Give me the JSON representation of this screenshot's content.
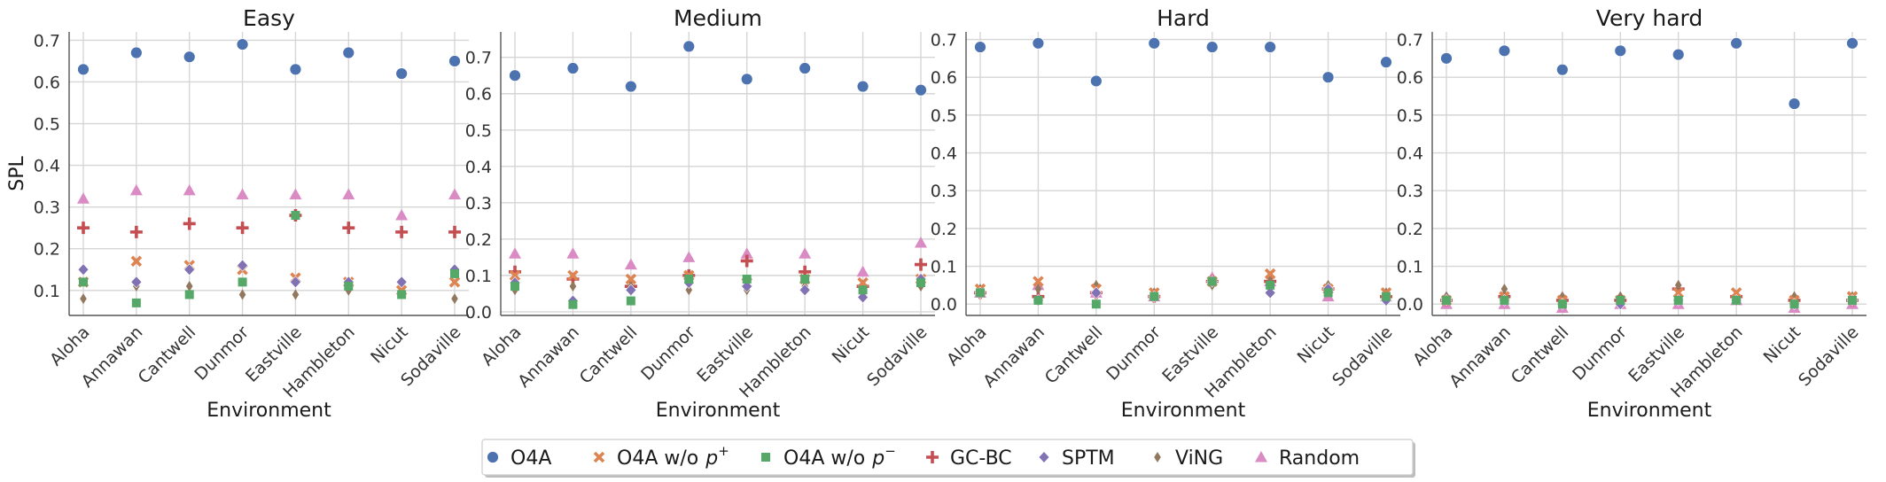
{
  "figure": {
    "ylabel": "SPL",
    "xlabel": "Environment"
  },
  "chart_data": [
    {
      "type": "scatter",
      "title": "Easy",
      "xlabel": "Environment",
      "ylabel": "SPL",
      "categories": [
        "Aloha",
        "Annawan",
        "Cantwell",
        "Dunmor",
        "Eastville",
        "Hambleton",
        "Nicut",
        "Sodaville"
      ],
      "ylim": [
        0.04,
        0.72
      ],
      "yticks": [
        0.1,
        0.2,
        0.3,
        0.4,
        0.5,
        0.6,
        0.7
      ],
      "grid": true,
      "series": [
        {
          "name": "O4A",
          "values": [
            0.63,
            0.67,
            0.66,
            0.69,
            0.63,
            0.67,
            0.62,
            0.65
          ]
        },
        {
          "name": "O4A w/o p+",
          "values": [
            0.12,
            0.17,
            0.16,
            0.15,
            0.13,
            0.12,
            0.1,
            0.12
          ]
        },
        {
          "name": "O4A w/o p−",
          "values": [
            0.12,
            0.07,
            0.09,
            0.12,
            0.28,
            0.11,
            0.09,
            0.14
          ]
        },
        {
          "name": "GC-BC",
          "values": [
            0.25,
            0.24,
            0.26,
            0.25,
            0.28,
            0.25,
            0.24,
            0.24
          ]
        },
        {
          "name": "SPTM",
          "values": [
            0.15,
            0.12,
            0.15,
            0.16,
            0.12,
            0.12,
            0.12,
            0.15
          ]
        },
        {
          "name": "ViNG",
          "values": [
            0.08,
            0.11,
            0.11,
            0.09,
            0.09,
            0.1,
            0.1,
            0.08
          ]
        },
        {
          "name": "Random",
          "values": [
            0.32,
            0.34,
            0.34,
            0.33,
            0.33,
            0.33,
            0.28,
            0.33
          ]
        }
      ]
    },
    {
      "type": "scatter",
      "title": "Medium",
      "xlabel": "Environment",
      "ylabel": "",
      "categories": [
        "Aloha",
        "Annawan",
        "Cantwell",
        "Dunmor",
        "Eastville",
        "Hambleton",
        "Nicut",
        "Sodaville"
      ],
      "ylim": [
        -0.01,
        0.77
      ],
      "yticks": [
        0.0,
        0.1,
        0.2,
        0.3,
        0.4,
        0.5,
        0.6,
        0.7
      ],
      "grid": true,
      "series": [
        {
          "name": "O4A",
          "values": [
            0.65,
            0.67,
            0.62,
            0.73,
            0.64,
            0.67,
            0.62,
            0.61
          ]
        },
        {
          "name": "O4A w/o p+",
          "values": [
            0.1,
            0.1,
            0.09,
            0.1,
            0.08,
            0.09,
            0.08,
            0.09
          ]
        },
        {
          "name": "O4A w/o p−",
          "values": [
            0.07,
            0.02,
            0.03,
            0.09,
            0.09,
            0.09,
            0.06,
            0.08
          ]
        },
        {
          "name": "GC-BC",
          "values": [
            0.11,
            0.09,
            0.07,
            0.1,
            0.14,
            0.11,
            0.07,
            0.13
          ]
        },
        {
          "name": "SPTM",
          "values": [
            0.08,
            0.03,
            0.06,
            0.08,
            0.07,
            0.06,
            0.04,
            0.09
          ]
        },
        {
          "name": "ViNG",
          "values": [
            0.06,
            0.07,
            0.07,
            0.06,
            0.06,
            0.07,
            0.07,
            0.07
          ]
        },
        {
          "name": "Random",
          "values": [
            0.16,
            0.16,
            0.13,
            0.15,
            0.16,
            0.16,
            0.11,
            0.19
          ]
        }
      ]
    },
    {
      "type": "scatter",
      "title": "Hard",
      "xlabel": "Environment",
      "ylabel": "",
      "categories": [
        "Aloha",
        "Annawan",
        "Cantwell",
        "Dunmor",
        "Eastville",
        "Hambleton",
        "Nicut",
        "Sodaville"
      ],
      "ylim": [
        -0.03,
        0.72
      ],
      "yticks": [
        0.0,
        0.1,
        0.2,
        0.3,
        0.4,
        0.5,
        0.6,
        0.7
      ],
      "grid": true,
      "series": [
        {
          "name": "O4A",
          "values": [
            0.68,
            0.69,
            0.59,
            0.69,
            0.68,
            0.68,
            0.6,
            0.64
          ]
        },
        {
          "name": "O4A w/o p+",
          "values": [
            0.04,
            0.06,
            0.04,
            0.03,
            0.06,
            0.08,
            0.04,
            0.03
          ]
        },
        {
          "name": "O4A w/o p−",
          "values": [
            0.03,
            0.01,
            0.0,
            0.02,
            0.06,
            0.05,
            0.03,
            0.02
          ]
        },
        {
          "name": "GC-BC",
          "values": [
            0.03,
            0.02,
            0.03,
            0.02,
            0.06,
            0.06,
            0.04,
            0.02
          ]
        },
        {
          "name": "SPTM",
          "values": [
            0.03,
            0.01,
            0.03,
            0.02,
            0.06,
            0.03,
            0.04,
            0.01
          ]
        },
        {
          "name": "ViNG",
          "values": [
            0.04,
            0.04,
            0.05,
            0.03,
            0.05,
            0.07,
            0.05,
            0.03
          ]
        },
        {
          "name": "Random",
          "values": [
            0.03,
            0.05,
            0.03,
            0.02,
            0.07,
            0.06,
            0.02,
            0.02
          ]
        }
      ]
    },
    {
      "type": "scatter",
      "title": "Very hard",
      "xlabel": "Environment",
      "ylabel": "",
      "categories": [
        "Aloha",
        "Annawan",
        "Cantwell",
        "Dunmor",
        "Eastville",
        "Hambleton",
        "Nicut",
        "Sodaville"
      ],
      "ylim": [
        -0.03,
        0.72
      ],
      "yticks": [
        0.0,
        0.1,
        0.2,
        0.3,
        0.4,
        0.5,
        0.6,
        0.7
      ],
      "grid": true,
      "series": [
        {
          "name": "O4A",
          "values": [
            0.65,
            0.67,
            0.62,
            0.67,
            0.66,
            0.69,
            0.53,
            0.69
          ]
        },
        {
          "name": "O4A w/o p+",
          "values": [
            0.01,
            0.02,
            0.01,
            0.01,
            0.03,
            0.03,
            0.01,
            0.02
          ]
        },
        {
          "name": "O4A w/o p−",
          "values": [
            0.01,
            0.01,
            0.0,
            0.01,
            0.01,
            0.01,
            0.0,
            0.01
          ]
        },
        {
          "name": "GC-BC",
          "values": [
            0.01,
            0.02,
            0.01,
            0.01,
            0.04,
            0.02,
            0.01,
            0.01
          ]
        },
        {
          "name": "SPTM",
          "values": [
            0.01,
            0.01,
            0.0,
            0.0,
            0.01,
            0.01,
            0.0,
            0.01
          ]
        },
        {
          "name": "ViNG",
          "values": [
            0.02,
            0.04,
            0.02,
            0.02,
            0.05,
            0.02,
            0.02,
            0.02
          ]
        },
        {
          "name": "Random",
          "values": [
            0.0,
            0.0,
            -0.01,
            0.0,
            0.0,
            0.01,
            -0.01,
            0.0
          ]
        }
      ]
    }
  ],
  "legend": {
    "placement": "bottom-center",
    "entries": [
      {
        "label": "O4A",
        "marker": "circle",
        "color": "#4c72b0"
      },
      {
        "label": "O4A w/o",
        "sup": "+",
        "marker": "x",
        "color": "#dd8452"
      },
      {
        "label": "O4A w/o",
        "sup": "−",
        "marker": "square",
        "color": "#55a868"
      },
      {
        "label": "GC-BC",
        "marker": "plus",
        "color": "#c44e52"
      },
      {
        "label": "SPTM",
        "marker": "diamond",
        "color": "#8172b3"
      },
      {
        "label": "ViNG",
        "marker": "thin-diamond",
        "color": "#937860"
      },
      {
        "label": "Random",
        "marker": "triangle",
        "color": "#da8bc3"
      }
    ]
  }
}
